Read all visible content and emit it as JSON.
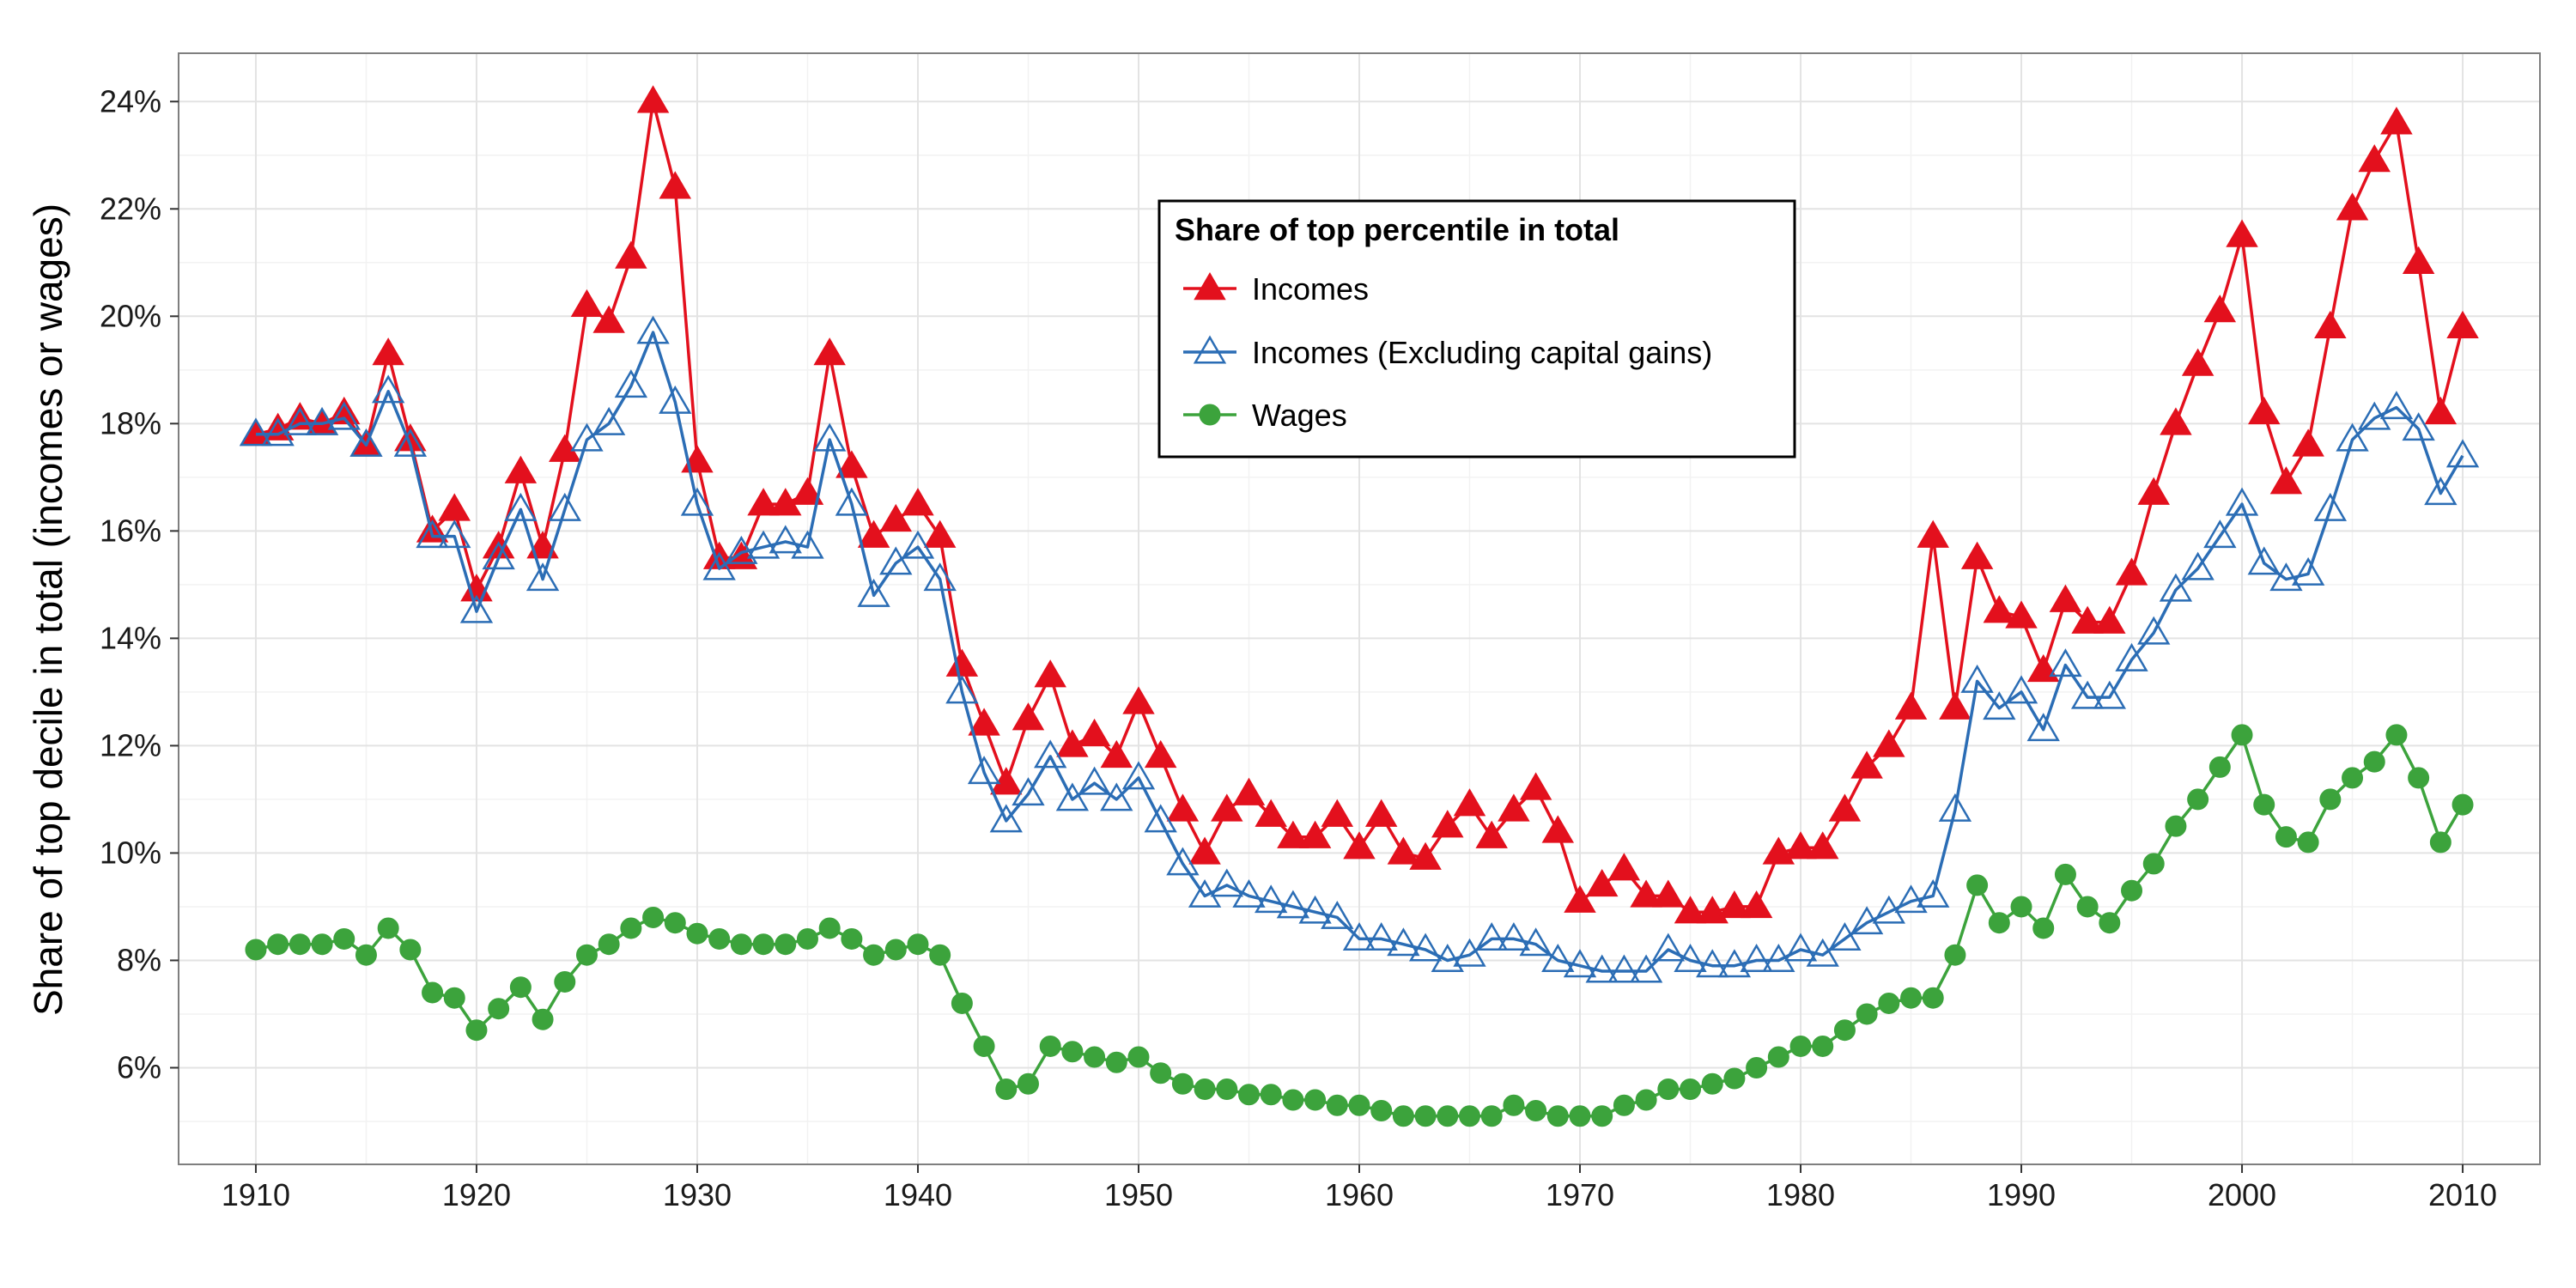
{
  "chart_data": {
    "type": "line",
    "title": "",
    "xlabel": "",
    "ylabel": "Share of top decile in total (incomes or wages)",
    "xlim": [
      1906.5,
      2013.5
    ],
    "ylim": [
      0.042,
      0.249
    ],
    "x_ticks": [
      1910,
      1920,
      1930,
      1940,
      1950,
      1960,
      1970,
      1980,
      1990,
      2000,
      2010
    ],
    "y_ticks": [
      0.06,
      0.08,
      0.1,
      0.12,
      0.14,
      0.16,
      0.18,
      0.2,
      0.22,
      0.24
    ],
    "y_tick_labels": [
      "6%",
      "8%",
      "10%",
      "12%",
      "14%",
      "16%",
      "18%",
      "20%",
      "22%",
      "24%"
    ],
    "grid": true,
    "legend": {
      "title": "Share of top percentile in total",
      "placement": "top-center"
    },
    "x": [
      1910,
      1911,
      1912,
      1913,
      1914,
      1915,
      1916,
      1917,
      1918,
      1919,
      1920,
      1921,
      1922,
      1923,
      1924,
      1925,
      1926,
      1927,
      1928,
      1929,
      1930,
      1931,
      1932,
      1933,
      1934,
      1935,
      1936,
      1937,
      1938,
      1939,
      1940,
      1941,
      1942,
      1943,
      1944,
      1945,
      1946,
      1947,
      1948,
      1949,
      1950,
      1951,
      1952,
      1953,
      1954,
      1955,
      1956,
      1957,
      1958,
      1959,
      1960,
      1961,
      1962,
      1963,
      1964,
      1965,
      1966,
      1967,
      1968,
      1969,
      1970,
      1971,
      1972,
      1973,
      1974,
      1975,
      1976,
      1977,
      1978,
      1979,
      1980,
      1981,
      1982,
      1983,
      1984,
      1985,
      1986,
      1987,
      1988,
      1989,
      1990,
      1991,
      1992,
      1993,
      1994,
      1995,
      1996,
      1997,
      1998,
      1999,
      2000,
      2001,
      2002,
      2003,
      2004,
      2005,
      2006,
      2007,
      2008,
      2009,
      2010
    ],
    "series": [
      {
        "name": "Incomes",
        "color": "#e3101d",
        "marker": "filled-triangle",
        "values": [
          0.178,
          0.179,
          0.181,
          0.18,
          0.182,
          0.176,
          0.193,
          0.177,
          0.16,
          0.164,
          0.149,
          0.157,
          0.171,
          0.157,
          0.175,
          0.202,
          0.199,
          0.211,
          0.24,
          0.224,
          0.173,
          0.155,
          0.155,
          0.165,
          0.165,
          0.167,
          0.193,
          0.172,
          0.159,
          0.162,
          0.165,
          0.159,
          0.135,
          0.124,
          0.113,
          0.125,
          0.133,
          0.12,
          0.122,
          0.118,
          0.128,
          0.118,
          0.108,
          0.1,
          0.108,
          0.111,
          0.107,
          0.103,
          0.103,
          0.107,
          0.101,
          0.107,
          0.1,
          0.099,
          0.105,
          0.109,
          0.103,
          0.108,
          0.112,
          0.104,
          0.091,
          0.094,
          0.097,
          0.092,
          0.092,
          0.089,
          0.089,
          0.09,
          0.09,
          0.1,
          0.101,
          0.101,
          0.108,
          0.116,
          0.12,
          0.127,
          0.159,
          0.127,
          0.155,
          0.145,
          0.144,
          0.134,
          0.147,
          0.143,
          0.143,
          0.152,
          0.167,
          0.18,
          0.191,
          0.201,
          0.215,
          0.182,
          0.169,
          0.176,
          0.198,
          0.22,
          0.229,
          0.236,
          0.21,
          0.182,
          0.198
        ]
      },
      {
        "name": "Incomes (Excluding capital gains)",
        "color": "#2b6db5",
        "marker": "open-triangle",
        "values": [
          0.178,
          0.178,
          0.18,
          0.18,
          0.181,
          0.176,
          0.186,
          0.176,
          0.159,
          0.159,
          0.145,
          0.155,
          0.164,
          0.151,
          0.164,
          0.177,
          0.18,
          0.187,
          0.197,
          0.184,
          0.165,
          0.153,
          0.156,
          0.157,
          0.158,
          0.157,
          0.177,
          0.165,
          0.148,
          0.154,
          0.157,
          0.151,
          0.13,
          0.115,
          0.106,
          0.111,
          0.118,
          0.11,
          0.113,
          0.11,
          0.114,
          0.106,
          0.098,
          0.092,
          0.094,
          0.092,
          0.091,
          0.09,
          0.089,
          0.088,
          0.084,
          0.084,
          0.083,
          0.082,
          0.08,
          0.081,
          0.084,
          0.084,
          0.083,
          0.08,
          0.079,
          0.078,
          0.078,
          0.078,
          0.082,
          0.08,
          0.079,
          0.079,
          0.08,
          0.08,
          0.082,
          0.081,
          0.084,
          0.087,
          0.089,
          0.091,
          0.092,
          0.108,
          0.132,
          0.127,
          0.13,
          0.123,
          0.135,
          0.129,
          0.129,
          0.136,
          0.141,
          0.149,
          0.153,
          0.159,
          0.165,
          0.154,
          0.151,
          0.152,
          0.164,
          0.177,
          0.181,
          0.183,
          0.179,
          0.167,
          0.174
        ]
      },
      {
        "name": "Wages",
        "color": "#3ca33c",
        "marker": "filled-circle",
        "values": [
          0.082,
          0.083,
          0.083,
          0.083,
          0.084,
          0.081,
          0.086,
          0.082,
          0.074,
          0.073,
          0.067,
          0.071,
          0.075,
          0.069,
          0.076,
          0.081,
          0.083,
          0.086,
          0.088,
          0.087,
          0.085,
          0.084,
          0.083,
          0.083,
          0.083,
          0.084,
          0.086,
          0.084,
          0.081,
          0.082,
          0.083,
          0.081,
          0.072,
          0.064,
          0.056,
          0.057,
          0.064,
          0.063,
          0.062,
          0.061,
          0.062,
          0.059,
          0.057,
          0.056,
          0.056,
          0.055,
          0.055,
          0.054,
          0.054,
          0.053,
          0.053,
          0.052,
          0.051,
          0.051,
          0.051,
          0.051,
          0.051,
          0.053,
          0.052,
          0.051,
          0.051,
          0.051,
          0.053,
          0.054,
          0.056,
          0.056,
          0.057,
          0.058,
          0.06,
          0.062,
          0.064,
          0.064,
          0.067,
          0.07,
          0.072,
          0.073,
          0.073,
          0.081,
          0.094,
          0.087,
          0.09,
          0.086,
          0.096,
          0.09,
          0.087,
          0.093,
          0.098,
          0.105,
          0.11,
          0.116,
          0.122,
          0.109,
          0.103,
          0.102,
          0.11,
          0.114,
          0.117,
          0.122,
          0.114,
          0.102,
          0.109
        ]
      }
    ]
  }
}
